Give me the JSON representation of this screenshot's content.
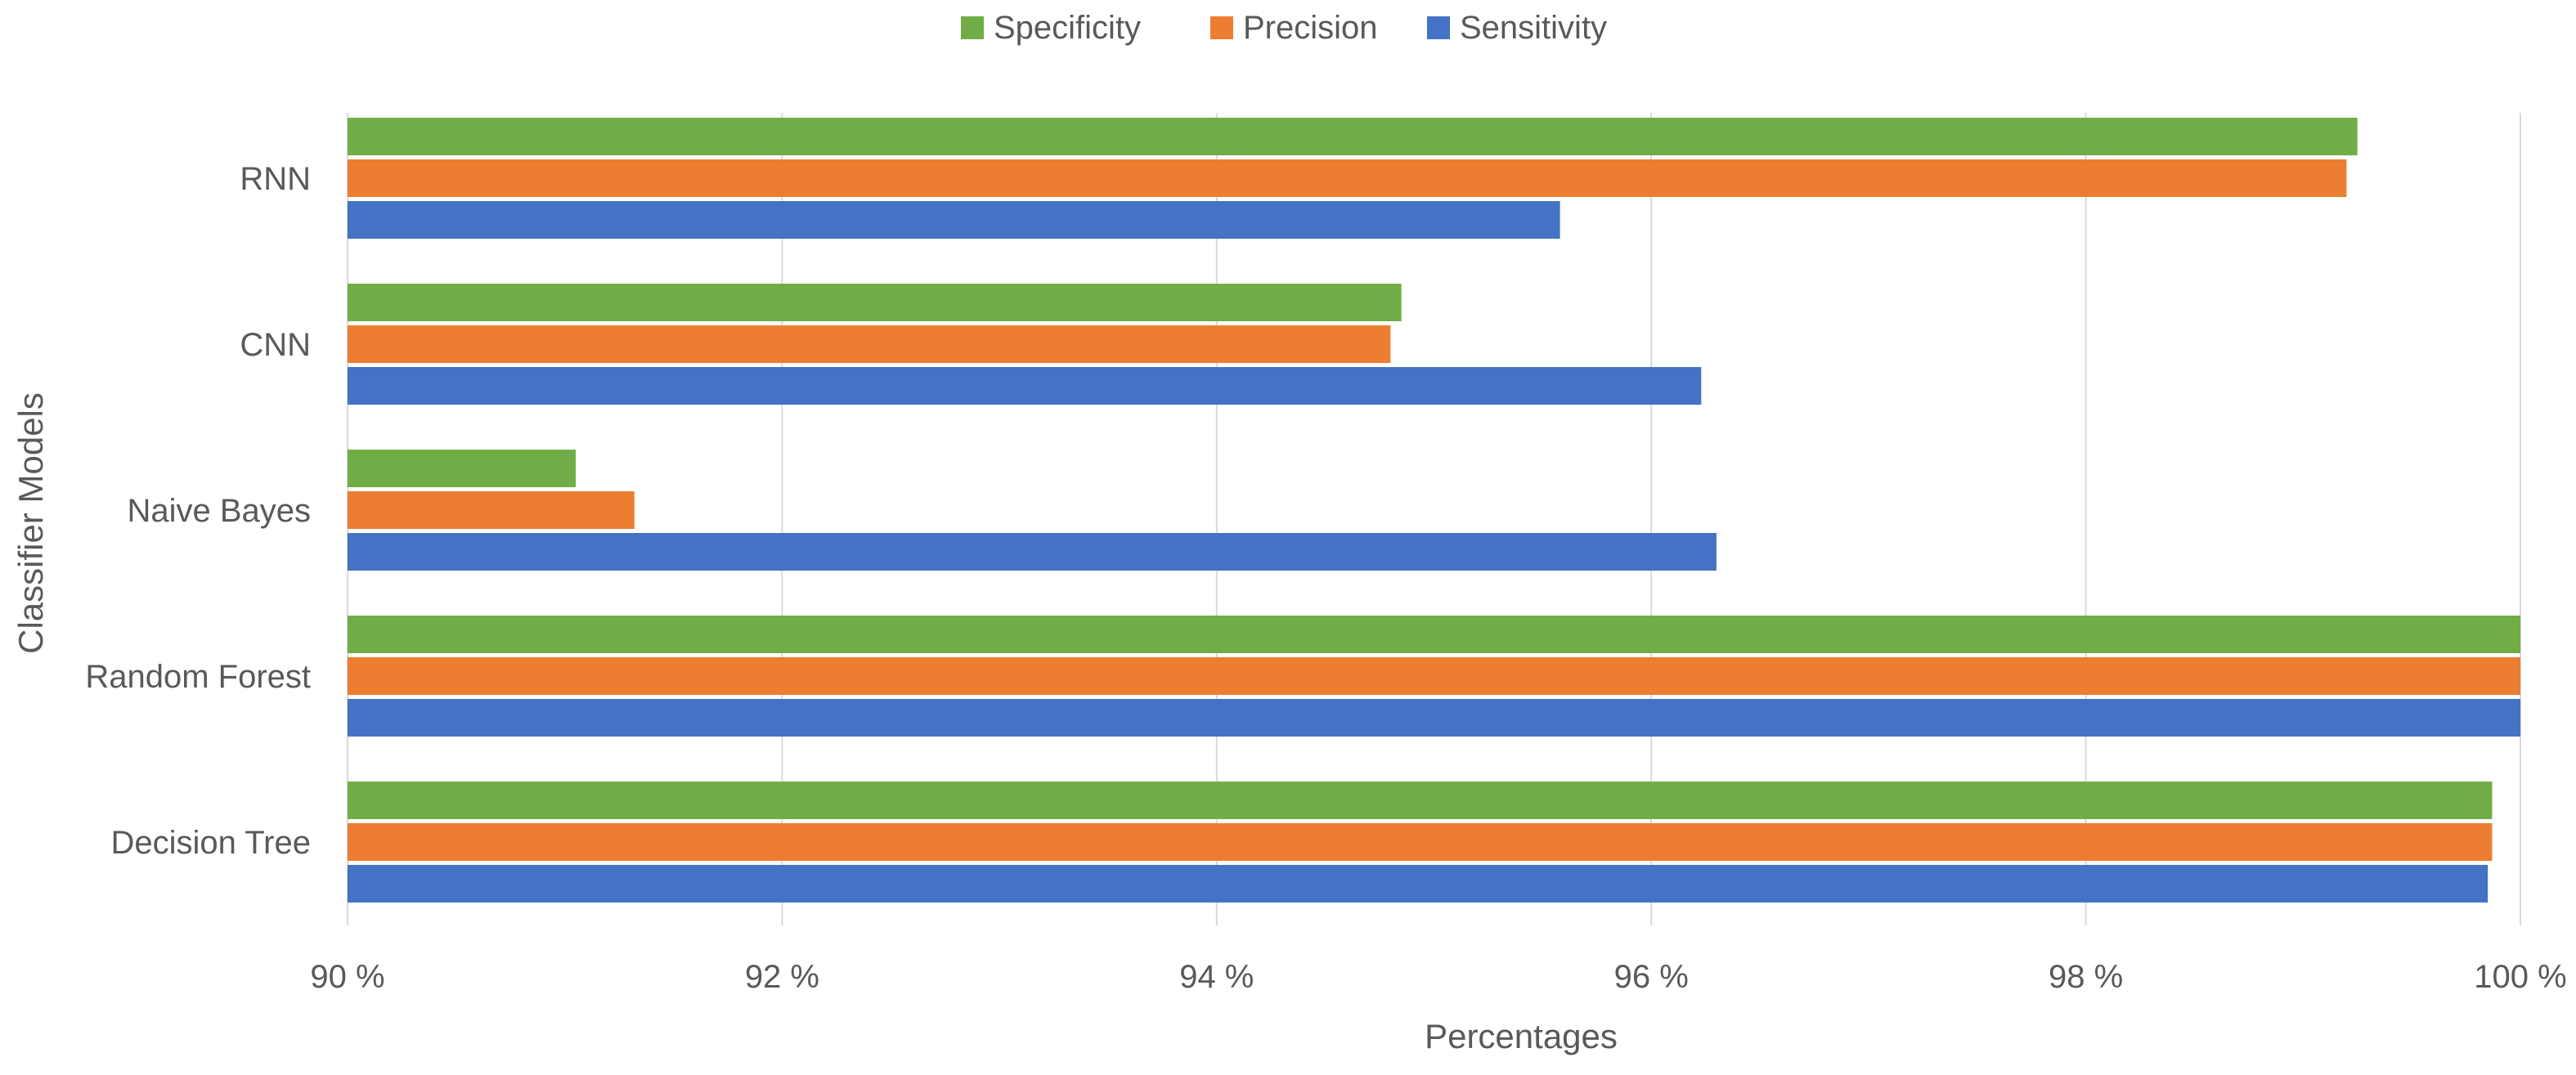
{
  "chart_data": {
    "type": "bar",
    "orientation": "horizontal",
    "title": "",
    "xlabel": "Percentages",
    "ylabel": "Classifier Models",
    "xlim": [
      90,
      100
    ],
    "x_ticks": [
      90,
      92,
      94,
      96,
      98,
      100
    ],
    "tick_suffix": " %",
    "grid": true,
    "legend_position": "top",
    "categories": [
      "RNN",
      "CNN",
      "Naive  Bayes",
      "Random Forest",
      "Decision Tree"
    ],
    "series": [
      {
        "name": "Specificity",
        "color": "#70ad47",
        "values": [
          99.25,
          94.85,
          91.05,
          100.0,
          99.87
        ]
      },
      {
        "name": "Precision",
        "color": "#ed7d31",
        "values": [
          99.2,
          94.8,
          91.32,
          100.0,
          99.87
        ]
      },
      {
        "name": "Sensitivity",
        "color": "#4472c4",
        "values": [
          95.58,
          96.23,
          96.3,
          100.0,
          99.85
        ]
      }
    ],
    "legend_order": [
      "Specificity",
      "Precision",
      "Sensitivity"
    ]
  }
}
